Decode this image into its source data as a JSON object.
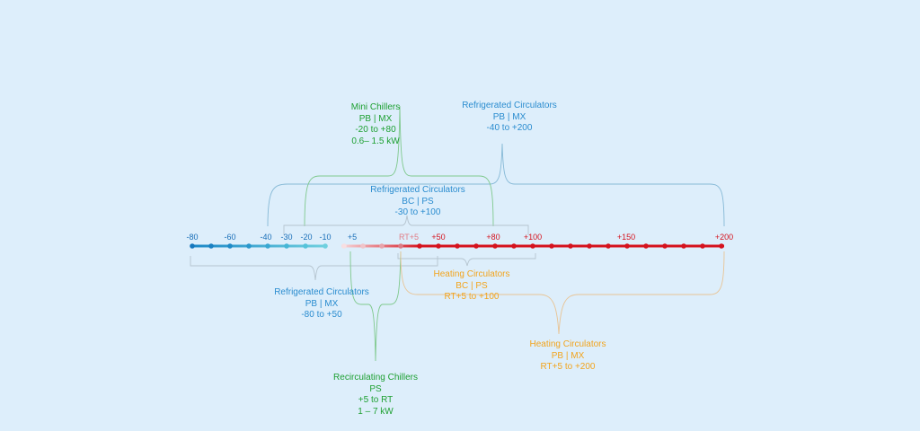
{
  "colors": {
    "background": "#ddeefb",
    "cold": "#1a86c6",
    "cold_light": "#6fd0df",
    "hot": "#d5121d",
    "hot_light": "#f2a8ae",
    "green": "#1ea032",
    "blue_text": "#2a8ccf",
    "orange": "#f2a41d",
    "bracket_blue": "#86b9d6",
    "bracket_green": "#7fc98d",
    "bracket_orange": "#e8c495",
    "bracket_grey": "#b5c4cf"
  },
  "axis": {
    "ticks": [
      {
        "label": "-80",
        "color": "#1a6fb8"
      },
      {
        "label": "-60",
        "color": "#1a6fb8"
      },
      {
        "label": "-40",
        "color": "#1a6fb8"
      },
      {
        "label": "-30",
        "color": "#1a6fb8"
      },
      {
        "label": "-20",
        "color": "#1a6fb8"
      },
      {
        "label": "-10",
        "color": "#1a6fb8"
      },
      {
        "label": "+5",
        "color": "#1a6fb8"
      },
      {
        "label": "RT+5",
        "color": "#e17d86"
      },
      {
        "label": "+50",
        "color": "#d5121d"
      },
      {
        "label": "+80",
        "color": "#d5121d"
      },
      {
        "label": "+100",
        "color": "#d5121d"
      },
      {
        "label": "+150",
        "color": "#d5121d"
      },
      {
        "label": "+200",
        "color": "#d5121d"
      }
    ]
  },
  "groups": {
    "mini_chillers": {
      "lines": [
        "Mini Chillers",
        "PB | MX",
        "-20 to +80",
        "0.6– 1.5 kW"
      ],
      "color": "#1ea032"
    },
    "refrig_pb_mx_40": {
      "lines": [
        "Refrigerated Circulators",
        "PB | MX",
        "-40 to +200"
      ],
      "color": "#2a8ccf"
    },
    "refrig_bc_ps": {
      "lines": [
        "Refrigerated Circulators",
        "BC | PS",
        "-30 to +100"
      ],
      "color": "#2a8ccf"
    },
    "refrig_pb_mx_80": {
      "lines": [
        "Refrigerated Circulators",
        "PB | MX",
        "-80 to +50"
      ],
      "color": "#2a8ccf"
    },
    "heating_bc_ps": {
      "lines": [
        "Heating Circulators",
        "BC | PS",
        "RT+5 to +100"
      ],
      "color": "#f2a41d"
    },
    "heating_pb_mx": {
      "lines": [
        "Heating Circulators",
        "PB | MX",
        "RT+5 to +200"
      ],
      "color": "#f2a41d"
    },
    "recirc_chillers": {
      "lines": [
        "Recirculating Chillers",
        "PS",
        "+5 to RT",
        "1 – 7 kW"
      ],
      "color": "#1ea032"
    }
  }
}
